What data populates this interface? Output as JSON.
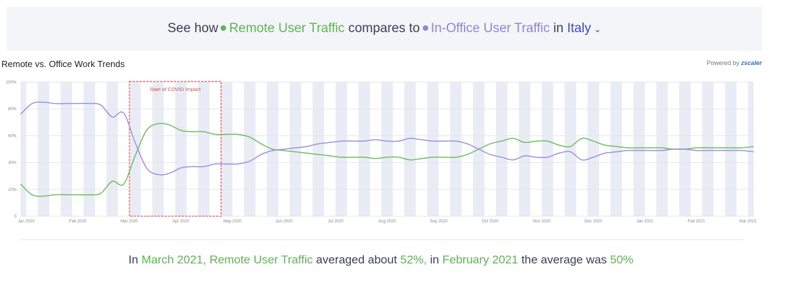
{
  "header": {
    "prefix": "See how",
    "remote_label": "Remote User Traffic",
    "middle": "compares to",
    "office_label": "In-Office User Traffic",
    "in_text": "in",
    "country": "Italy"
  },
  "chart_title": "Remote vs. Office Work Trends",
  "powered": {
    "prefix": "Powered by",
    "brand": "zscaler"
  },
  "chart_data": {
    "type": "line",
    "title": "Remote vs. Office Work Trends",
    "x_ticks": [
      "Jan 2020",
      "Feb 2020",
      "Mar 2020",
      "Apr 2020",
      "May 2020",
      "Jun 2020",
      "Jul 2020",
      "Aug 2020",
      "Sep 2020",
      "Oct 2020",
      "Nov 2020",
      "Dec 2020",
      "Jan 2021",
      "Feb 2021",
      "Mar 2021"
    ],
    "y_ticks": [
      "0",
      "20%",
      "40%",
      "60%",
      "80%",
      "100%"
    ],
    "ylim": [
      0,
      100
    ],
    "x_week_range": [
      0,
      64
    ],
    "annotation": {
      "label": "Start of COVID Impact",
      "start_week": 9.5,
      "end_week": 17.5
    },
    "grid": true,
    "series": [
      {
        "name": "Remote User Traffic",
        "color": "#6cbf5f",
        "x": [
          0,
          1,
          2,
          3,
          4,
          5,
          6,
          7,
          8,
          9,
          10,
          11,
          12,
          13,
          14,
          15,
          16,
          17,
          18,
          19,
          20,
          21,
          22,
          23,
          24,
          25,
          26,
          27,
          28,
          29,
          30,
          31,
          32,
          33,
          34,
          35,
          36,
          37,
          38,
          39,
          40,
          41,
          42,
          43,
          44,
          45,
          46,
          47,
          48,
          49,
          50,
          51,
          52,
          53,
          54,
          55,
          56,
          57,
          58,
          59,
          60,
          61,
          62,
          63,
          64
        ],
        "y": [
          24,
          16,
          15,
          16,
          16,
          16,
          16,
          17,
          26,
          24,
          45,
          64,
          69,
          68,
          64,
          63,
          63,
          61,
          61,
          61,
          59,
          54,
          50,
          49,
          48,
          47,
          46,
          45,
          44,
          44,
          44,
          43,
          44,
          44,
          42,
          43,
          44,
          44,
          44,
          46,
          50,
          54,
          56,
          58,
          55,
          56,
          56,
          53,
          52,
          58,
          56,
          53,
          52,
          51,
          51,
          51,
          51,
          50,
          50,
          51,
          51,
          51,
          51,
          51,
          52
        ]
      },
      {
        "name": "In-Office User Traffic",
        "color": "#9a93dc",
        "x": [
          0,
          1,
          2,
          3,
          4,
          5,
          6,
          7,
          8,
          9,
          10,
          11,
          12,
          13,
          14,
          15,
          16,
          17,
          18,
          19,
          20,
          21,
          22,
          23,
          24,
          25,
          26,
          27,
          28,
          29,
          30,
          31,
          32,
          33,
          34,
          35,
          36,
          37,
          38,
          39,
          40,
          41,
          42,
          43,
          44,
          45,
          46,
          47,
          48,
          49,
          50,
          51,
          52,
          53,
          54,
          55,
          56,
          57,
          58,
          59,
          60,
          61,
          62,
          63,
          64
        ],
        "y": [
          76,
          84,
          85,
          84,
          84,
          84,
          84,
          83,
          74,
          77,
          55,
          36,
          31,
          32,
          36,
          37,
          37,
          39,
          39,
          39,
          41,
          46,
          49,
          50,
          51,
          52,
          54,
          55,
          56,
          56,
          56,
          57,
          56,
          56,
          58,
          57,
          56,
          56,
          56,
          54,
          50,
          46,
          44,
          42,
          45,
          44,
          44,
          47,
          48,
          42,
          44,
          47,
          48,
          49,
          49,
          49,
          49,
          50,
          50,
          49,
          49,
          49,
          49,
          49,
          48
        ]
      }
    ]
  },
  "footer": {
    "t1": "In",
    "month1": "March 2021,",
    "remote": "Remote User Traffic",
    "t2": "averaged about",
    "val1": "52%,",
    "t3": "in",
    "month2": "February 2021",
    "t4": "the average was",
    "val2": "50%"
  }
}
